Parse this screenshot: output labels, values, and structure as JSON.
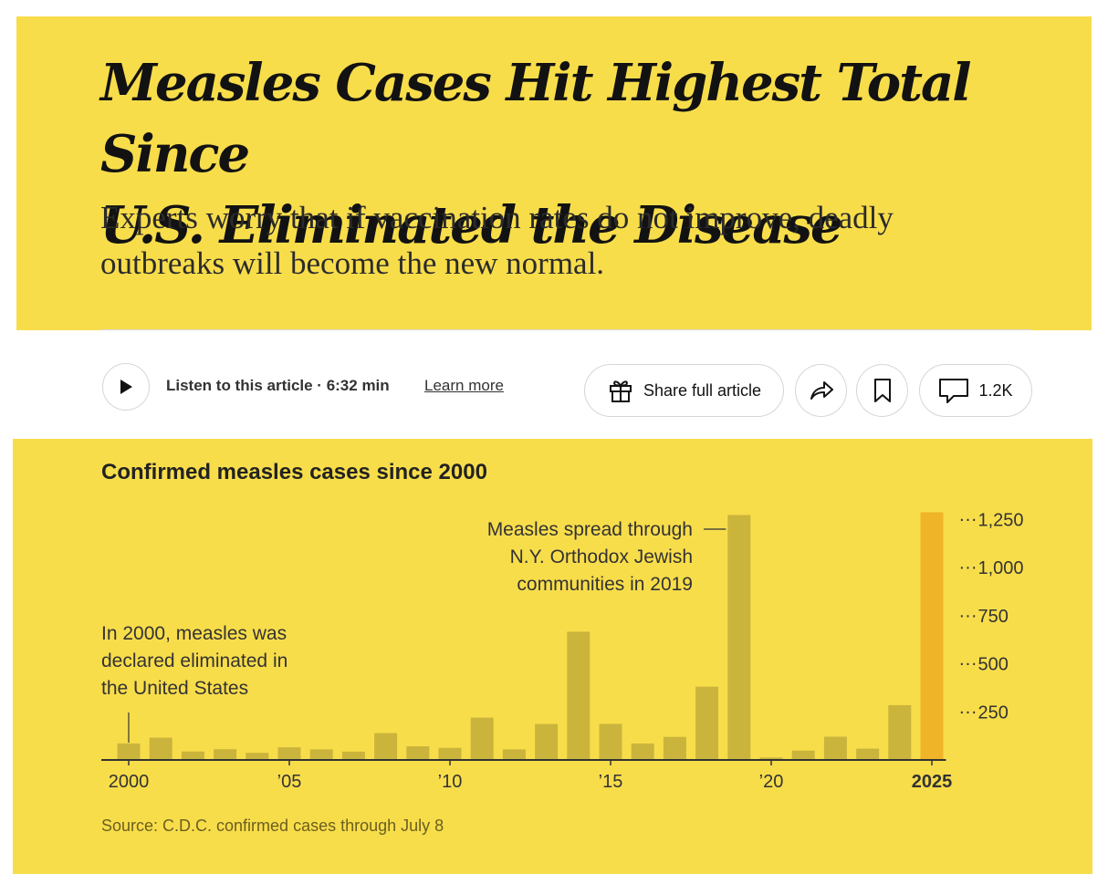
{
  "article": {
    "headline_line1": "Measles Cases Hit Highest Total Since",
    "headline_line2": "U.S. Eliminated the Disease",
    "dek_line1": "Experts worry that if vaccination rates do not improve, deadly",
    "dek_line2": "outbreaks will become the new normal."
  },
  "toolbar": {
    "listen_label": "Listen to this article · 6:32 min",
    "learn_more": "Learn more",
    "share_label": "Share full article",
    "comments_count": "1.2K"
  },
  "icons": {
    "play": "play-icon",
    "gift": "gift-icon",
    "share": "share-arrow-icon",
    "bookmark": "bookmark-icon",
    "comment": "comment-icon"
  },
  "colors": {
    "panel": "#f8dd4b",
    "bar": "#cbb43b",
    "bar_highlight": "#f0b429",
    "axis": "#333333"
  },
  "chart_data": {
    "type": "bar",
    "title": "Confirmed measles cases since 2000",
    "source": "Source: C.D.C. confirmed cases through July 8",
    "xlabel": "",
    "ylabel": "",
    "x": [
      2000,
      2001,
      2002,
      2003,
      2004,
      2005,
      2006,
      2007,
      2008,
      2009,
      2010,
      2011,
      2012,
      2013,
      2014,
      2015,
      2016,
      2017,
      2018,
      2019,
      2020,
      2021,
      2022,
      2023,
      2024,
      2025
    ],
    "values": [
      86,
      116,
      44,
      56,
      37,
      66,
      55,
      43,
      140,
      71,
      63,
      220,
      55,
      187,
      667,
      188,
      86,
      120,
      381,
      1274,
      13,
      49,
      121,
      59,
      285,
      1288
    ],
    "highlight": [
      2025
    ],
    "ylim": [
      0,
      1300
    ],
    "y_ticks": [
      {
        "value": 250,
        "label": "250"
      },
      {
        "value": 500,
        "label": "500"
      },
      {
        "value": 750,
        "label": "750"
      },
      {
        "value": 1000,
        "label": "1,000"
      },
      {
        "value": 1250,
        "label": "1,250"
      }
    ],
    "x_ticks": [
      {
        "value": 2000,
        "label": "2000",
        "bold": false
      },
      {
        "value": 2005,
        "label": "’05",
        "bold": false
      },
      {
        "value": 2010,
        "label": "’10",
        "bold": false
      },
      {
        "value": 2015,
        "label": "’15",
        "bold": false
      },
      {
        "value": 2020,
        "label": "’20",
        "bold": false
      },
      {
        "value": 2025,
        "label": "2025",
        "bold": true
      }
    ],
    "annotations": [
      {
        "year": 2000,
        "lines": [
          "In 2000, measles was",
          "declared eliminated in",
          "the United States"
        ]
      },
      {
        "year": 2019,
        "lines": [
          "Measles spread through",
          "N.Y. Orthodox Jewish",
          "communities in 2019"
        ]
      }
    ],
    "grid": false,
    "legend": "none"
  }
}
